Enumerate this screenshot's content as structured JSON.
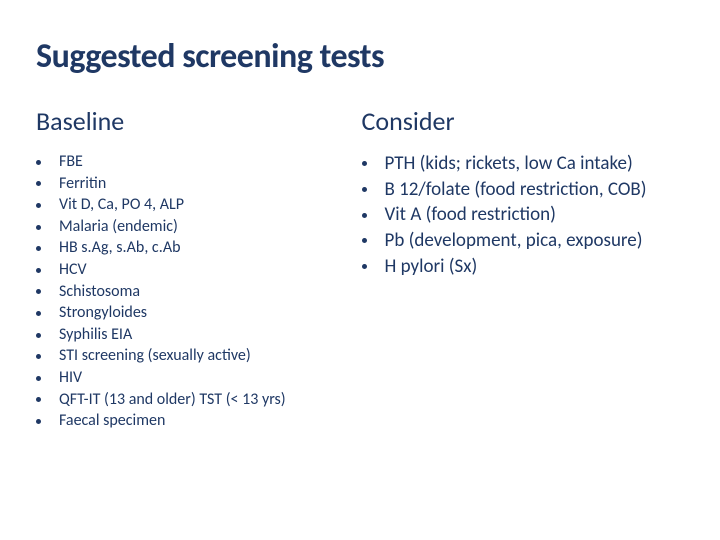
{
  "title": "Suggested screening tests",
  "left": {
    "heading": "Baseline",
    "items": [
      "FBE",
      "Ferritin",
      "Vit D, Ca, PO 4, ALP",
      "Malaria (endemic)",
      "HB s.Ag, s.Ab, c.Ab",
      "HCV",
      "Schistosoma",
      "Strongyloides",
      "Syphilis EIA",
      "STI screening (sexually active)",
      "HIV",
      "QFT-IT (13 and older) TST (< 13 yrs)",
      "Faecal specimen"
    ]
  },
  "right": {
    "heading": "Consider",
    "items": [
      "PTH (kids; rickets, low Ca intake)",
      "B 12/folate (food restriction, COB)",
      "Vit A (food restriction)",
      "Pb (development, pica, exposure)",
      "H pylori (Sx)"
    ]
  },
  "colors": {
    "text": "#1f3864",
    "background": "#ffffff"
  },
  "typography": {
    "title_fontsize": 34,
    "heading_fontsize": 26,
    "left_item_fontsize": 16,
    "right_item_fontsize": 19,
    "font_family": "Calibri"
  }
}
